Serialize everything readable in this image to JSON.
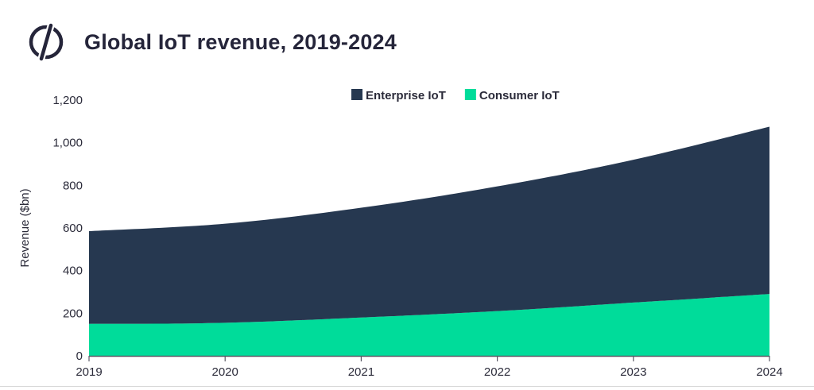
{
  "header": {
    "title": "Global IoT revenue, 2019-2024",
    "logo_icon": "brand-logo-icon"
  },
  "chart_data": {
    "type": "area",
    "stacked": true,
    "title": "Global IoT revenue, 2019-2024",
    "xlabel": "",
    "ylabel": "Revenue ($bn)",
    "x": [
      "2019",
      "2020",
      "2021",
      "2022",
      "2023",
      "2024"
    ],
    "ylim": [
      0,
      1200
    ],
    "yticks": [
      "0",
      "200",
      "400",
      "600",
      "800",
      "1,000",
      "1,200"
    ],
    "ytick_values": [
      0,
      200,
      400,
      600,
      800,
      1000,
      1200
    ],
    "grid": false,
    "legend_position": "top-center",
    "series": [
      {
        "name": "Consumer IoT",
        "color": "#00dc9a",
        "values": [
          150,
          155,
          180,
          210,
          250,
          290
        ]
      },
      {
        "name": "Enterprise IoT",
        "color": "#263850",
        "values": [
          435,
          465,
          515,
          585,
          670,
          785
        ]
      }
    ]
  }
}
